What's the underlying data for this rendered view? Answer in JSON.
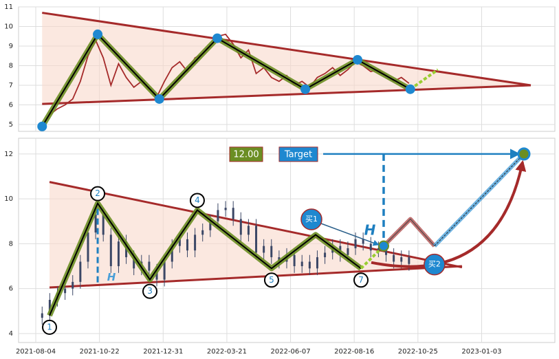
{
  "chart_data": [
    {
      "type": "line",
      "xlim": [
        -13.5,
        407.5
      ],
      "ylim": [
        4.65,
        11
      ],
      "yticks": [
        5,
        6,
        7,
        8,
        9,
        10,
        11
      ],
      "xticks": [
        0,
        50,
        100,
        150,
        200,
        250,
        300,
        350
      ],
      "grid": true,
      "x": [
        5,
        11,
        17,
        23,
        29,
        35,
        41,
        47,
        53,
        59,
        65,
        71,
        77,
        83,
        89,
        95,
        101,
        107,
        113,
        119,
        125,
        131,
        137,
        143,
        149,
        155,
        161,
        167,
        173,
        179,
        185,
        191,
        197,
        203,
        209,
        215,
        221,
        227,
        233,
        239,
        245,
        251,
        257,
        263,
        269,
        275,
        281,
        287,
        293
      ],
      "values": [
        4.9,
        5.5,
        5.8,
        6.0,
        6.3,
        7.2,
        8.5,
        9.3,
        8.4,
        7.0,
        8.1,
        7.4,
        6.9,
        7.2,
        6.8,
        6.4,
        7.2,
        7.9,
        8.2,
        7.7,
        8.4,
        8.6,
        9.0,
        9.5,
        9.6,
        9.1,
        8.4,
        8.8,
        7.6,
        7.9,
        7.4,
        7.2,
        7.5,
        7.0,
        7.2,
        6.9,
        7.4,
        7.6,
        7.9,
        7.5,
        7.8,
        8.2,
        8.0,
        7.7,
        7.8,
        7.5,
        7.2,
        7.4,
        7.1
      ],
      "color": "#a52a2a",
      "triangle": {
        "upper": {
          "x": [
            5,
            388.6
          ],
          "y": [
            10.7,
            7.0
          ]
        },
        "lower": {
          "x": [
            5,
            388.6
          ],
          "y": [
            6.05,
            7.0
          ]
        },
        "line_color": "#a52a2a",
        "fill_color": "#f8d8cc"
      },
      "zigzag": {
        "x": [
          5,
          48.6,
          97,
          142.5,
          211.6,
          252.6,
          294
        ],
        "y": [
          4.9,
          9.6,
          6.3,
          9.4,
          6.8,
          8.3,
          6.8
        ],
        "color": "#6b8e23"
      },
      "projection": {
        "x": [
          294,
          315.7
        ],
        "y": [
          6.8,
          7.8
        ]
      },
      "pivot_color": "#1e88d0"
    },
    {
      "type": "candlestick",
      "xlim": [
        -13.5,
        407.5
      ],
      "ylim": [
        3.6,
        12.7
      ],
      "yticks": [
        4,
        6,
        8,
        10,
        12
      ],
      "grid": true,
      "xticks": [
        {
          "value": 0,
          "label": "2021-08-04"
        },
        {
          "value": 50,
          "label": "2021-10-22"
        },
        {
          "value": 100,
          "label": "2021-12-31"
        },
        {
          "value": 150,
          "label": "2022-03-21"
        },
        {
          "value": 200,
          "label": "2022-06-07"
        },
        {
          "value": 250,
          "label": "2022-08-16"
        },
        {
          "value": 300,
          "label": "2022-10-25"
        },
        {
          "value": 350,
          "label": "2023-01-03"
        }
      ],
      "x": [
        5,
        11,
        17,
        23,
        29,
        35,
        41,
        47,
        53,
        59,
        65,
        71,
        77,
        83,
        89,
        95,
        101,
        107,
        113,
        119,
        125,
        131,
        137,
        143,
        149,
        155,
        161,
        167,
        173,
        179,
        185,
        191,
        197,
        203,
        209,
        215,
        221,
        227,
        233,
        239,
        245,
        251,
        257,
        263,
        269,
        275,
        281,
        287,
        293
      ],
      "open": [
        4.7,
        4.9,
        5.5,
        5.8,
        6.0,
        6.3,
        7.2,
        8.5,
        9.3,
        8.4,
        7.0,
        8.1,
        7.4,
        6.9,
        7.2,
        6.8,
        6.4,
        7.2,
        7.9,
        8.2,
        7.7,
        8.4,
        8.6,
        9.0,
        9.5,
        9.6,
        9.1,
        8.4,
        8.8,
        7.6,
        7.9,
        7.4,
        7.2,
        7.5,
        7.0,
        7.2,
        6.9,
        7.4,
        7.6,
        7.9,
        7.5,
        7.8,
        8.2,
        8.0,
        7.7,
        7.8,
        7.5,
        7.2,
        7.4
      ],
      "high": [
        5.2,
        5.8,
        6.1,
        6.3,
        6.6,
        7.5,
        8.8,
        9.6,
        9.6,
        8.7,
        8.4,
        8.4,
        7.7,
        7.5,
        7.5,
        7.1,
        7.5,
        8.2,
        8.5,
        8.5,
        8.7,
        8.9,
        9.3,
        9.8,
        9.9,
        9.9,
        9.4,
        9.1,
        9.1,
        8.2,
        8.2,
        7.7,
        7.8,
        7.8,
        7.5,
        7.5,
        7.7,
        7.9,
        8.2,
        8.2,
        8.1,
        8.5,
        8.5,
        8.3,
        8.1,
        8.1,
        7.8,
        7.7,
        7.7
      ],
      "low": [
        4.4,
        4.6,
        5.2,
        5.5,
        5.7,
        6.0,
        6.9,
        8.2,
        8.1,
        6.7,
        6.7,
        7.1,
        6.6,
        6.6,
        6.5,
        6.1,
        6.1,
        6.9,
        7.6,
        7.4,
        7.4,
        8.1,
        8.3,
        8.7,
        9.2,
        8.8,
        8.1,
        8.1,
        7.3,
        7.3,
        7.1,
        6.9,
        6.9,
        6.7,
        6.7,
        6.6,
        6.6,
        7.1,
        7.3,
        7.2,
        7.2,
        7.5,
        7.7,
        7.4,
        7.4,
        7.2,
        6.9,
        6.9,
        6.8
      ],
      "close": [
        4.9,
        5.5,
        5.8,
        6.0,
        6.3,
        7.2,
        8.5,
        9.3,
        8.4,
        7.0,
        8.1,
        7.4,
        6.9,
        7.2,
        6.8,
        6.4,
        7.2,
        7.9,
        8.2,
        7.7,
        8.4,
        8.6,
        9.0,
        9.5,
        9.6,
        9.1,
        8.4,
        8.8,
        7.6,
        7.9,
        7.4,
        7.2,
        7.5,
        7.0,
        7.2,
        6.9,
        7.4,
        7.6,
        7.9,
        7.5,
        7.8,
        8.2,
        8.0,
        7.7,
        7.8,
        7.5,
        7.2,
        7.4,
        7.1
      ],
      "color": "#3b4766",
      "triangle": {
        "upper": {
          "x": [
            10.8,
            334.6
          ],
          "y": [
            10.75,
            6.95
          ]
        },
        "lower": {
          "x": [
            10.8,
            334.6
          ],
          "y": [
            6.05,
            7.0
          ]
        },
        "line_color": "#a52a2a",
        "fill_color": "#f8d8cc"
      },
      "zigzag": {
        "x": [
          10.8,
          48.6,
          89.6,
          126.8,
          185.1,
          219.7,
          255.3
        ],
        "y": [
          4.8,
          9.8,
          6.4,
          9.5,
          6.9,
          8.4,
          6.9
        ],
        "color": "#6b8e23"
      },
      "projection": {
        "x": [
          255.3,
          273.1
        ],
        "y": [
          6.9,
          7.9
        ]
      },
      "pattern_labels": [
        "1",
        "2",
        "3",
        "4",
        "5",
        null,
        "7"
      ],
      "forecast": {
        "x": [
          273.1,
          294.1,
          313
        ],
        "y": [
          7.9,
          9.1,
          7.9
        ],
        "color": "#b05050"
      },
      "target_path": {
        "x": [
          313,
          383.2
        ],
        "y": [
          7.9,
          12.0
        ],
        "color": "#4a9fd8"
      },
      "target_price": {
        "value": 12,
        "label": "12.00"
      },
      "target_label": "Target",
      "height_label": "H",
      "buy_labels": [
        "买1",
        "买2"
      ],
      "accent_color": "#1e7fc0"
    }
  ]
}
